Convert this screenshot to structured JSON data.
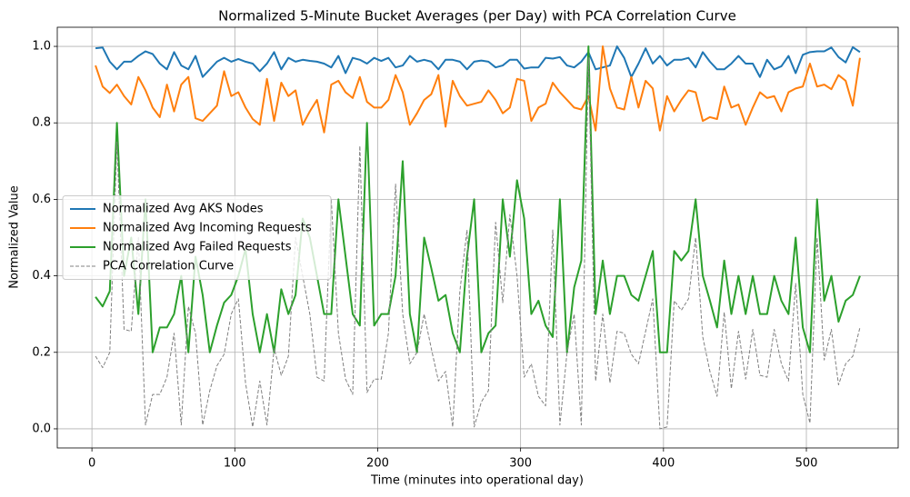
{
  "chart_data": {
    "type": "line",
    "title": "Normalized 5-Minute Bucket Averages (per Day) with PCA Correlation Curve",
    "x_label": "Time (minutes into operational day)",
    "y_label": "Normalized Value",
    "x": [
      2.5,
      7.5,
      12.5,
      17.5,
      22.5,
      27.5,
      32.5,
      37.5,
      42.5,
      47.5,
      52.5,
      57.5,
      62.5,
      67.5,
      72.5,
      77.5,
      82.5,
      87.5,
      92.5,
      97.5,
      102.5,
      107.5,
      112.5,
      117.5,
      122.5,
      127.5,
      132.5,
      137.5,
      142.5,
      147.5,
      152.5,
      157.5,
      162.5,
      167.5,
      172.5,
      177.5,
      182.5,
      187.5,
      192.5,
      197.5,
      202.5,
      207.5,
      212.5,
      217.5,
      222.5,
      227.5,
      232.5,
      237.5,
      242.5,
      247.5,
      252.5,
      257.5,
      262.5,
      267.5,
      272.5,
      277.5,
      282.5,
      287.5,
      292.5,
      297.5,
      302.5,
      307.5,
      312.5,
      317.5,
      322.5,
      327.5,
      332.5,
      337.5,
      342.5,
      347.5,
      352.5,
      357.5,
      362.5,
      367.5,
      372.5,
      377.5,
      382.5,
      387.5,
      392.5,
      397.5,
      402.5,
      407.5,
      412.5,
      417.5,
      422.5,
      427.5,
      432.5,
      437.5,
      442.5,
      447.5,
      452.5,
      457.5,
      462.5,
      467.5,
      472.5,
      477.5,
      482.5,
      487.5,
      492.5,
      497.5,
      502.5,
      507.5,
      512.5,
      517.5,
      522.5,
      527.5,
      532.5,
      537.5
    ],
    "series": [
      {
        "name": "Normalized Avg AKS Nodes",
        "color": "#1f77b4",
        "linestyle": "solid",
        "values": [
          0.995,
          0.997,
          0.96,
          0.94,
          0.96,
          0.96,
          0.975,
          0.987,
          0.98,
          0.955,
          0.94,
          0.985,
          0.95,
          0.94,
          0.975,
          0.92,
          0.94,
          0.96,
          0.97,
          0.96,
          0.967,
          0.96,
          0.955,
          0.935,
          0.955,
          0.985,
          0.94,
          0.97,
          0.96,
          0.965,
          0.962,
          0.96,
          0.955,
          0.945,
          0.975,
          0.93,
          0.97,
          0.965,
          0.955,
          0.97,
          0.962,
          0.97,
          0.945,
          0.95,
          0.975,
          0.96,
          0.965,
          0.96,
          0.94,
          0.965,
          0.965,
          0.96,
          0.94,
          0.96,
          0.963,
          0.96,
          0.945,
          0.95,
          0.965,
          0.965,
          0.942,
          0.945,
          0.945,
          0.97,
          0.968,
          0.972,
          0.95,
          0.945,
          0.96,
          0.985,
          0.94,
          0.945,
          0.95,
          1.0,
          0.97,
          0.92,
          0.955,
          0.995,
          0.955,
          0.975,
          0.95,
          0.965,
          0.965,
          0.97,
          0.945,
          0.985,
          0.96,
          0.94,
          0.94,
          0.955,
          0.975,
          0.955,
          0.955,
          0.92,
          0.965,
          0.94,
          0.948,
          0.975,
          0.93,
          0.978,
          0.985,
          0.987,
          0.987,
          0.997,
          0.972,
          0.958,
          0.998,
          0.985
        ]
      },
      {
        "name": "Normalized Avg Incoming Requests",
        "color": "#ff7f0e",
        "linestyle": "solid",
        "values": [
          0.95,
          0.895,
          0.878,
          0.9,
          0.87,
          0.848,
          0.92,
          0.885,
          0.84,
          0.815,
          0.9,
          0.83,
          0.9,
          0.92,
          0.812,
          0.805,
          0.825,
          0.845,
          0.935,
          0.87,
          0.88,
          0.84,
          0.81,
          0.795,
          0.915,
          0.805,
          0.905,
          0.87,
          0.885,
          0.795,
          0.83,
          0.86,
          0.775,
          0.9,
          0.91,
          0.88,
          0.865,
          0.92,
          0.855,
          0.84,
          0.84,
          0.86,
          0.925,
          0.88,
          0.795,
          0.825,
          0.86,
          0.875,
          0.925,
          0.79,
          0.91,
          0.87,
          0.845,
          0.85,
          0.855,
          0.885,
          0.86,
          0.825,
          0.84,
          0.915,
          0.91,
          0.805,
          0.84,
          0.85,
          0.905,
          0.88,
          0.86,
          0.84,
          0.835,
          0.87,
          0.78,
          1.0,
          0.89,
          0.84,
          0.835,
          0.92,
          0.84,
          0.91,
          0.89,
          0.78,
          0.87,
          0.83,
          0.86,
          0.885,
          0.88,
          0.805,
          0.815,
          0.81,
          0.895,
          0.84,
          0.848,
          0.795,
          0.84,
          0.88,
          0.865,
          0.87,
          0.83,
          0.88,
          0.89,
          0.895,
          0.955,
          0.895,
          0.9,
          0.888,
          0.925,
          0.91,
          0.845,
          0.97
        ]
      },
      {
        "name": "Normalized Avg Failed Requests",
        "color": "#2ca02c",
        "linestyle": "solid",
        "values": [
          0.345,
          0.32,
          0.36,
          0.8,
          0.4,
          0.5,
          0.3,
          0.6,
          0.2,
          0.265,
          0.265,
          0.3,
          0.4,
          0.2,
          0.45,
          0.35,
          0.2,
          0.27,
          0.33,
          0.35,
          0.4,
          0.47,
          0.3,
          0.2,
          0.3,
          0.2,
          0.365,
          0.3,
          0.35,
          0.55,
          0.5,
          0.4,
          0.3,
          0.3,
          0.6,
          0.45,
          0.3,
          0.27,
          0.8,
          0.27,
          0.3,
          0.3,
          0.4,
          0.7,
          0.3,
          0.2,
          0.5,
          0.42,
          0.335,
          0.35,
          0.25,
          0.2,
          0.45,
          0.6,
          0.2,
          0.25,
          0.27,
          0.6,
          0.45,
          0.65,
          0.55,
          0.3,
          0.335,
          0.27,
          0.24,
          0.6,
          0.2,
          0.37,
          0.44,
          1.0,
          0.3,
          0.44,
          0.3,
          0.4,
          0.4,
          0.35,
          0.335,
          0.4,
          0.465,
          0.2,
          0.2,
          0.465,
          0.44,
          0.465,
          0.6,
          0.4,
          0.335,
          0.265,
          0.44,
          0.3,
          0.4,
          0.3,
          0.4,
          0.3,
          0.3,
          0.4,
          0.335,
          0.3,
          0.5,
          0.265,
          0.2,
          0.6,
          0.335,
          0.4,
          0.28,
          0.335,
          0.35,
          0.4
        ]
      },
      {
        "name": "PCA Correlation Curve",
        "color": "#808080",
        "linestyle": "dashed",
        "values": [
          0.19,
          0.16,
          0.2,
          0.75,
          0.26,
          0.255,
          0.5,
          0.01,
          0.09,
          0.09,
          0.135,
          0.25,
          0.01,
          0.32,
          0.25,
          0.01,
          0.1,
          0.165,
          0.195,
          0.3,
          0.34,
          0.12,
          0.005,
          0.125,
          0.01,
          0.21,
          0.14,
          0.19,
          0.5,
          0.4,
          0.3,
          0.135,
          0.125,
          0.6,
          0.25,
          0.13,
          0.09,
          0.74,
          0.095,
          0.13,
          0.13,
          0.25,
          0.64,
          0.3,
          0.17,
          0.2,
          0.3,
          0.21,
          0.125,
          0.15,
          0.005,
          0.36,
          0.52,
          0.005,
          0.07,
          0.1,
          0.54,
          0.33,
          0.56,
          0.4,
          0.135,
          0.17,
          0.085,
          0.06,
          0.52,
          0.01,
          0.2,
          0.3,
          0.01,
          0.97,
          0.125,
          0.3,
          0.12,
          0.255,
          0.25,
          0.195,
          0.17,
          0.255,
          0.34,
          0.0,
          0.005,
          0.335,
          0.31,
          0.34,
          0.5,
          0.24,
          0.15,
          0.085,
          0.305,
          0.105,
          0.255,
          0.13,
          0.26,
          0.14,
          0.135,
          0.26,
          0.17,
          0.125,
          0.38,
          0.09,
          0.015,
          0.5,
          0.18,
          0.26,
          0.115,
          0.17,
          0.19,
          0.265
        ]
      }
    ],
    "xlim": [
      -24.25,
      564.25
    ],
    "ylim": [
      -0.05,
      1.05
    ],
    "xticks": [
      0,
      100,
      200,
      300,
      400,
      500
    ],
    "yticks": [
      {
        "value": 0,
        "label": "0.0"
      },
      0.2,
      0.4,
      0.6,
      0.8,
      {
        "value": 1,
        "label": "1.0"
      }
    ],
    "grid": true,
    "legend": "center left"
  }
}
